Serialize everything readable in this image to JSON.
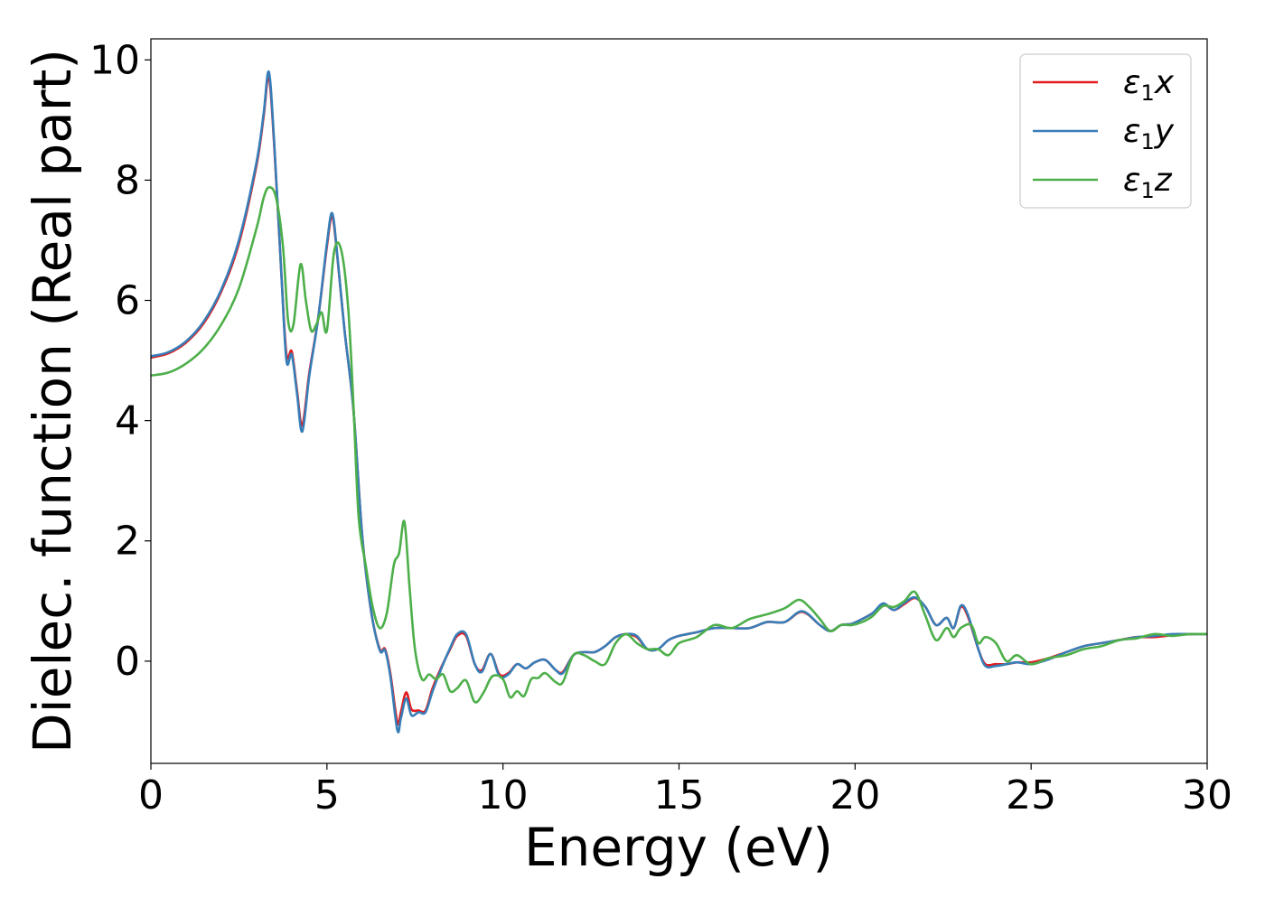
{
  "chart_data": {
    "type": "line",
    "title": "",
    "xlabel": "Energy (eV)",
    "ylabel": "Dielec. function (Real part)",
    "xlim": [
      0,
      30
    ],
    "ylim": [
      -1.7,
      10.35
    ],
    "xticks": [
      0,
      5,
      10,
      15,
      20,
      25,
      30
    ],
    "yticks": [
      0,
      2,
      4,
      6,
      8,
      10
    ],
    "grid": false,
    "legend_position": "top-right",
    "series": [
      {
        "name": "ε1x",
        "legend_base": "ε",
        "legend_sub": "1",
        "legend_var": "x",
        "color": "#e41a1c",
        "x": [
          0,
          0.5,
          1.0,
          1.5,
          2.0,
          2.5,
          3.0,
          3.2,
          3.35,
          3.5,
          3.7,
          3.85,
          4.0,
          4.15,
          4.3,
          4.5,
          4.75,
          5.0,
          5.15,
          5.3,
          5.5,
          5.75,
          6.0,
          6.25,
          6.5,
          6.65,
          6.8,
          7.0,
          7.1,
          7.25,
          7.4,
          7.6,
          7.8,
          8.0,
          8.25,
          8.5,
          8.7,
          8.95,
          9.2,
          9.4,
          9.65,
          9.9,
          10.15,
          10.4,
          10.65,
          10.9,
          11.2,
          11.5,
          11.7,
          12.0,
          12.3,
          12.6,
          12.9,
          13.2,
          13.5,
          13.8,
          14.1,
          14.4,
          14.7,
          15.0,
          15.5,
          16.0,
          16.5,
          17.0,
          17.5,
          18.0,
          18.5,
          19.0,
          19.3,
          19.6,
          19.9,
          20.2,
          20.5,
          20.8,
          21.1,
          21.4,
          21.7,
          22.0,
          22.3,
          22.6,
          22.8,
          23.0,
          23.2,
          23.5,
          23.7,
          24.0,
          24.3,
          24.6,
          25.0,
          25.5,
          26.0,
          26.5,
          27.0,
          27.5,
          28.0,
          28.5,
          29.0,
          29.5,
          30.0
        ],
        "y": [
          5.05,
          5.12,
          5.3,
          5.62,
          6.15,
          6.95,
          8.25,
          9.05,
          9.72,
          8.6,
          6.5,
          5.1,
          5.15,
          4.5,
          3.92,
          4.8,
          5.7,
          6.9,
          7.4,
          6.7,
          5.5,
          4.2,
          2.1,
          0.85,
          0.2,
          0.2,
          -0.2,
          -1.02,
          -0.85,
          -0.52,
          -0.8,
          -0.82,
          -0.82,
          -0.45,
          -0.1,
          0.2,
          0.42,
          0.42,
          -0.05,
          -0.15,
          0.12,
          -0.22,
          -0.2,
          -0.05,
          -0.12,
          -0.02,
          0.02,
          -0.15,
          -0.18,
          0.1,
          0.15,
          0.15,
          0.25,
          0.4,
          0.45,
          0.4,
          0.2,
          0.2,
          0.35,
          0.42,
          0.48,
          0.55,
          0.55,
          0.55,
          0.65,
          0.65,
          0.82,
          0.6,
          0.5,
          0.6,
          0.62,
          0.7,
          0.8,
          0.95,
          0.85,
          0.95,
          1.05,
          0.9,
          0.6,
          0.72,
          0.55,
          0.9,
          0.75,
          0.2,
          -0.05,
          -0.05,
          -0.05,
          -0.02,
          -0.02,
          0.05,
          0.15,
          0.25,
          0.3,
          0.35,
          0.4,
          0.4,
          0.43,
          0.45,
          0.45
        ]
      },
      {
        "name": "ε1y",
        "legend_base": "ε",
        "legend_sub": "1",
        "legend_var": "y",
        "color": "#377eb8",
        "x": [
          0,
          0.5,
          1.0,
          1.5,
          2.0,
          2.5,
          3.0,
          3.2,
          3.35,
          3.5,
          3.7,
          3.85,
          4.0,
          4.15,
          4.3,
          4.5,
          4.75,
          5.0,
          5.15,
          5.3,
          5.5,
          5.75,
          6.0,
          6.25,
          6.5,
          6.65,
          6.8,
          7.0,
          7.1,
          7.25,
          7.4,
          7.6,
          7.8,
          8.0,
          8.25,
          8.5,
          8.7,
          8.95,
          9.2,
          9.4,
          9.65,
          9.9,
          10.15,
          10.4,
          10.65,
          10.9,
          11.2,
          11.5,
          11.7,
          12.0,
          12.3,
          12.6,
          12.9,
          13.2,
          13.5,
          13.8,
          14.1,
          14.4,
          14.7,
          15.0,
          15.5,
          16.0,
          16.5,
          17.0,
          17.5,
          18.0,
          18.5,
          19.0,
          19.3,
          19.6,
          19.9,
          20.2,
          20.5,
          20.8,
          21.1,
          21.4,
          21.7,
          22.0,
          22.3,
          22.6,
          22.8,
          23.0,
          23.2,
          23.5,
          23.7,
          24.0,
          24.3,
          24.6,
          25.0,
          25.5,
          26.0,
          26.5,
          27.0,
          27.5,
          28.0,
          28.5,
          29.0,
          29.5,
          30.0
        ],
        "y": [
          5.07,
          5.14,
          5.32,
          5.65,
          6.18,
          7.0,
          8.3,
          9.1,
          9.8,
          8.65,
          6.5,
          5.0,
          5.1,
          4.45,
          3.82,
          4.75,
          5.7,
          6.95,
          7.45,
          6.72,
          5.5,
          4.2,
          2.1,
          0.85,
          0.18,
          0.18,
          -0.25,
          -1.15,
          -0.95,
          -0.62,
          -0.9,
          -0.85,
          -0.85,
          -0.5,
          -0.12,
          0.22,
          0.45,
          0.45,
          -0.05,
          -0.18,
          0.12,
          -0.25,
          -0.22,
          -0.05,
          -0.12,
          -0.02,
          0.02,
          -0.15,
          -0.2,
          0.1,
          0.15,
          0.15,
          0.25,
          0.4,
          0.45,
          0.42,
          0.2,
          0.2,
          0.35,
          0.42,
          0.48,
          0.55,
          0.55,
          0.55,
          0.65,
          0.65,
          0.83,
          0.6,
          0.5,
          0.6,
          0.62,
          0.7,
          0.8,
          0.96,
          0.85,
          0.97,
          1.06,
          0.9,
          0.6,
          0.72,
          0.55,
          0.92,
          0.78,
          0.2,
          -0.08,
          -0.08,
          -0.05,
          -0.02,
          -0.05,
          0.03,
          0.15,
          0.25,
          0.3,
          0.35,
          0.4,
          0.42,
          0.45,
          0.45,
          0.45
        ]
      },
      {
        "name": "ε1z",
        "legend_base": "ε",
        "legend_sub": "1",
        "legend_var": "z",
        "color": "#4daf4a",
        "x": [
          0,
          0.5,
          1.0,
          1.5,
          2.0,
          2.5,
          3.0,
          3.2,
          3.35,
          3.55,
          3.75,
          3.9,
          4.05,
          4.25,
          4.4,
          4.55,
          4.7,
          4.85,
          5.0,
          5.2,
          5.4,
          5.6,
          5.75,
          5.9,
          6.1,
          6.3,
          6.5,
          6.7,
          6.9,
          7.05,
          7.2,
          7.35,
          7.5,
          7.7,
          7.9,
          8.1,
          8.3,
          8.5,
          8.7,
          8.95,
          9.2,
          9.45,
          9.7,
          10.0,
          10.2,
          10.4,
          10.6,
          10.8,
          11.0,
          11.2,
          11.5,
          11.7,
          12.0,
          12.3,
          12.6,
          12.9,
          13.2,
          13.5,
          13.8,
          14.1,
          14.4,
          14.7,
          15.0,
          15.5,
          16.0,
          16.5,
          17.0,
          17.5,
          18.0,
          18.4,
          18.7,
          19.0,
          19.3,
          19.6,
          19.9,
          20.2,
          20.5,
          20.8,
          21.1,
          21.4,
          21.7,
          22.0,
          22.3,
          22.6,
          22.8,
          23.0,
          23.3,
          23.5,
          23.7,
          24.0,
          24.3,
          24.6,
          25.0,
          25.5,
          26.0,
          26.5,
          27.0,
          27.5,
          28.0,
          28.5,
          29.0,
          29.5,
          30.0
        ],
        "y": [
          4.75,
          4.8,
          4.95,
          5.2,
          5.6,
          6.2,
          7.2,
          7.7,
          7.88,
          7.72,
          6.9,
          5.65,
          5.6,
          6.6,
          6.0,
          5.5,
          5.6,
          5.8,
          5.5,
          6.8,
          6.85,
          5.9,
          4.3,
          2.4,
          1.6,
          0.9,
          0.55,
          0.8,
          1.6,
          1.8,
          2.32,
          1.2,
          0.2,
          -0.3,
          -0.22,
          -0.3,
          -0.22,
          -0.5,
          -0.45,
          -0.32,
          -0.68,
          -0.52,
          -0.25,
          -0.3,
          -0.6,
          -0.5,
          -0.58,
          -0.3,
          -0.28,
          -0.2,
          -0.35,
          -0.35,
          0.1,
          0.1,
          0.0,
          -0.05,
          0.3,
          0.45,
          0.3,
          0.2,
          0.2,
          0.1,
          0.3,
          0.4,
          0.6,
          0.55,
          0.7,
          0.78,
          0.88,
          1.02,
          0.9,
          0.7,
          0.5,
          0.6,
          0.6,
          0.65,
          0.75,
          0.92,
          0.9,
          1.0,
          1.15,
          0.75,
          0.35,
          0.55,
          0.4,
          0.55,
          0.6,
          0.3,
          0.4,
          0.3,
          0.0,
          0.1,
          -0.05,
          0.05,
          0.1,
          0.2,
          0.25,
          0.35,
          0.38,
          0.45,
          0.42,
          0.45,
          0.45
        ]
      }
    ]
  }
}
